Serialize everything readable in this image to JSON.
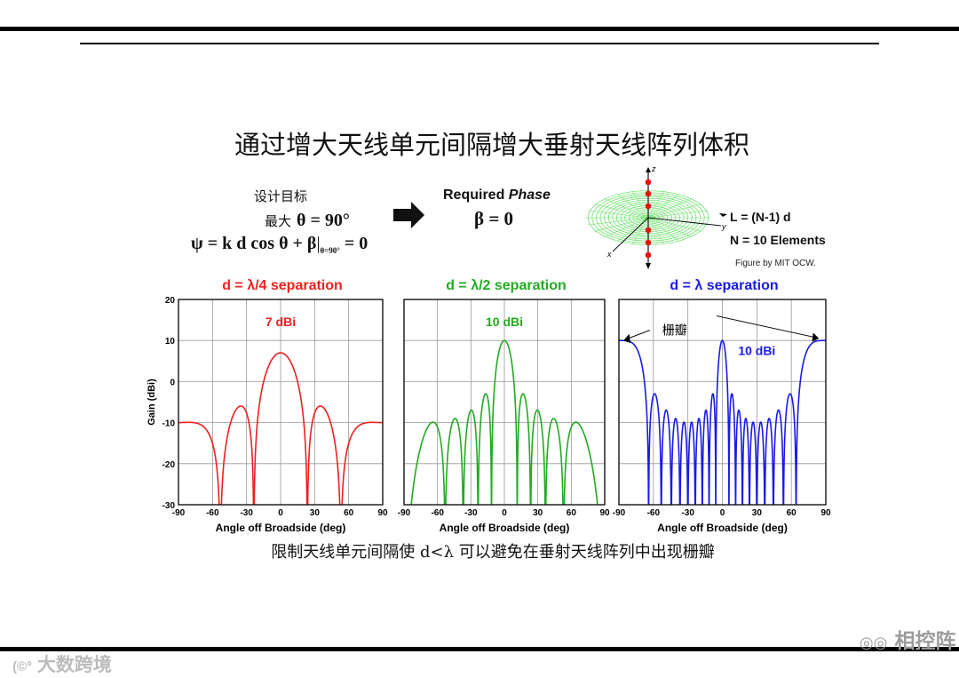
{
  "slide": {
    "title": "通过增大天线单元间隔增大垂射天线阵列体积",
    "design_goal": "设计目标",
    "max_label": "最大",
    "max_condition": "θ = 90°",
    "psi_main": "ψ = k d cos θ + β",
    "psi_sub": "θ=90°",
    "psi_tail": "= 0",
    "required_prefix": "Required ",
    "required_phase": "Phase",
    "beta_eq": "β = 0",
    "array_length": "L = (N-1) d",
    "elements": "N = 10 Elements",
    "credit": "Figure by MIT OCW.",
    "caption": "限制天线单元间隔使 d<λ 可以避免在垂射天线阵列中出现栅瓣",
    "watermark_left": "大数跨境",
    "watermark_right": "相控阵",
    "axis_z": "z",
    "axis_y": "y",
    "axis_x": "x"
  },
  "colors": {
    "red": "#ee2020",
    "green": "#22aa22",
    "blue": "#1a1ae6",
    "pattern": "#5ee05e"
  },
  "chart_data": [
    {
      "type": "line",
      "title": "d = λ/4 separation",
      "color": "#ee2020",
      "N": 10,
      "d_over_lambda": 0.25,
      "xlabel": "Angle off Broadside (deg)",
      "ylabel": "Gain (dBi)",
      "xlim": [
        -90,
        90
      ],
      "ylim": [
        -30,
        20
      ],
      "xticks": [
        -90,
        -60,
        -30,
        0,
        30,
        60,
        90
      ],
      "yticks": [
        20,
        10,
        0,
        -10,
        -20,
        -30
      ],
      "grid": true,
      "peak": 7,
      "annotation": "7 dBi"
    },
    {
      "type": "line",
      "title": "d = λ/2 separation",
      "color": "#22aa22",
      "N": 10,
      "d_over_lambda": 0.5,
      "xlabel": "Angle off Broadside (deg)",
      "ylabel": "",
      "xlim": [
        -90,
        90
      ],
      "ylim": [
        -30,
        20
      ],
      "xticks": [
        -90,
        -60,
        -30,
        0,
        30,
        60,
        90
      ],
      "grid": true,
      "peak": 10,
      "annotation": "10 dBi"
    },
    {
      "type": "line",
      "title": "d = λ separation",
      "color": "#1a1ae6",
      "N": 10,
      "d_over_lambda": 1.0,
      "xlabel": "Angle off Broadside (deg)",
      "ylabel": "",
      "xlim": [
        -90,
        90
      ],
      "ylim": [
        -30,
        20
      ],
      "xticks": [
        -90,
        -60,
        -30,
        0,
        30,
        60,
        90
      ],
      "grid": true,
      "peak": 10,
      "annotation": "10 dBi",
      "grating_lobe_label": "栅瓣"
    }
  ]
}
